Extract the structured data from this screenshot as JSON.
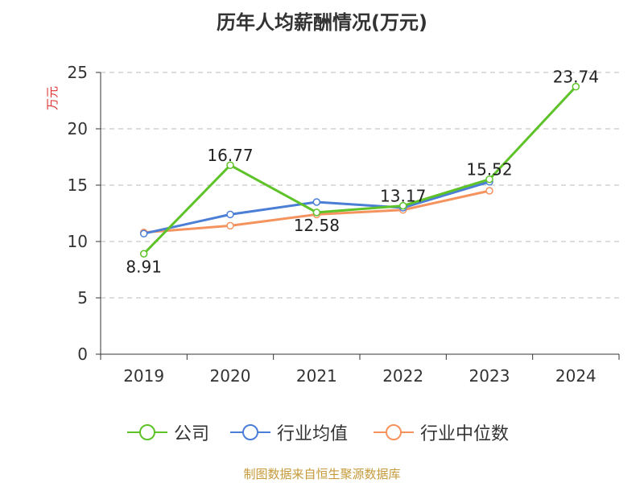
{
  "title": "历年人均薪酬情况(万元)",
  "source": "制图数据来自恒生聚源数据库",
  "legend": {
    "company": "公司",
    "industry_avg": "行业均值",
    "industry_median": "行业中位数"
  },
  "colors": {
    "company": "#5ec229",
    "industry_avg": "#4b7fd6",
    "industry_median": "#f5935f",
    "grid": "#bbbbbb",
    "axis": "#333333",
    "ylabel": "#e03434"
  },
  "chart_data": {
    "type": "line",
    "title": "历年人均薪酬情况(万元)",
    "ylabel": "万元",
    "xlabel": "",
    "categories": [
      "2019",
      "2020",
      "2021",
      "2022",
      "2023",
      "2024"
    ],
    "ylim": [
      0,
      25
    ],
    "yticks": [
      0,
      5,
      10,
      15,
      20,
      25
    ],
    "grid": true,
    "legend_position": "bottom",
    "series": [
      {
        "name": "公司",
        "key": "company",
        "values": [
          8.91,
          16.77,
          12.58,
          13.17,
          15.52,
          23.74
        ],
        "labels": [
          "8.91",
          "16.77",
          "12.58",
          "13.17",
          "15.52",
          "23.74"
        ]
      },
      {
        "name": "行业均值",
        "key": "industry_avg",
        "values": [
          10.7,
          12.4,
          13.5,
          13.0,
          15.3,
          null
        ]
      },
      {
        "name": "行业中位数",
        "key": "industry_median",
        "values": [
          10.8,
          11.4,
          12.4,
          12.8,
          14.5,
          null
        ]
      }
    ]
  }
}
